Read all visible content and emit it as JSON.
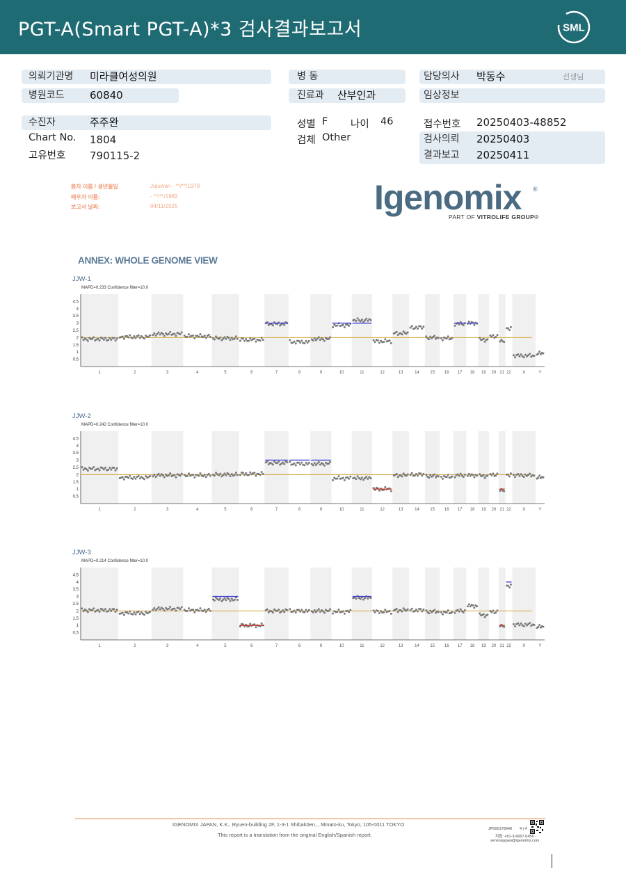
{
  "header": {
    "title": "PGT-A(Smart  PGT-A)*3 검사결과보고서",
    "brand": "SML"
  },
  "info": {
    "institution": {
      "label": "의뢰기관명",
      "value": "미라클여성의원"
    },
    "hospital_code": {
      "label": "병원코드",
      "value": "60840"
    },
    "ward": {
      "label": "병   동",
      "value": ""
    },
    "department": {
      "label": "진료과",
      "value": "산부인과"
    },
    "doctor": {
      "label": "담당의사",
      "value": "박동수",
      "suffix": "선생님"
    },
    "clinical_info": {
      "label": "임상정보",
      "value": ""
    },
    "patient": {
      "label": "수진자",
      "value": "주주완"
    },
    "chart_no": {
      "label": "Chart No.",
      "value": "1804"
    },
    "id_no": {
      "label": "고유번호",
      "value": "790115-2"
    },
    "sex": {
      "label": "성별",
      "value": "F"
    },
    "age": {
      "label": "나이",
      "value": "46"
    },
    "specimen": {
      "label": "검체",
      "value": "Other"
    },
    "receipt_no": {
      "label": "접수번호",
      "value": "20250403-48852"
    },
    "test_request": {
      "label": "검사의뢰",
      "value": "20250403"
    },
    "result_report": {
      "label": "결과보고",
      "value": "20250411"
    }
  },
  "igenomix": {
    "patient_label": "환자 이름 / 생년월일",
    "patient_value": "Jujuwan - **/**/1979",
    "spouse_label": "배우자 이름:",
    "spouse_value": " - **/**/1982",
    "report_date_label": "보고서 날짜:",
    "report_date_value": "04/11/2025",
    "logo_word": "Igenomix",
    "logo_reg": "®",
    "logo_sub_prefix": "PART OF ",
    "logo_sub_brand": "VITROLIFE GROUP",
    "logo_sub_suffix": "®"
  },
  "annex_title": "ANNEX: WHOLE GENOME VIEW",
  "chart_data": [
    {
      "type": "scatter",
      "title": "JJW-1",
      "subtitle": "MAPD=0.233 Confidence filter=10.0",
      "y_ticks": [
        "4.5",
        "4",
        "3.5",
        "3",
        "2.5",
        "2",
        "1.5",
        "1",
        "0.5"
      ],
      "ylim": [
        0,
        5
      ],
      "baseline": 2,
      "categories": [
        "1",
        "2",
        "3",
        "4",
        "5",
        "6",
        "7",
        "8",
        "9",
        "10",
        "11",
        "12",
        "13",
        "14",
        "15",
        "16",
        "17",
        "18",
        "19",
        "20",
        "21",
        "22",
        "X",
        "Y"
      ],
      "values": [
        1.9,
        2.05,
        2.25,
        2.1,
        1.95,
        1.85,
        2.95,
        1.7,
        1.9,
        2.85,
        3.2,
        1.75,
        2.3,
        2.7,
        2.0,
        1.95,
        2.95,
        3.0,
        1.85,
        2.1,
        1.8,
        2.65,
        0.75,
        0.9
      ],
      "calls": [
        {
          "chrom": "7",
          "value": 3.0,
          "color": "#3a3ad6"
        },
        {
          "chrom": "10",
          "value": 3.0,
          "color": "#3a3ad6"
        },
        {
          "chrom": "11",
          "value": 3.0,
          "color": "#3a3ad6"
        },
        {
          "chrom": "17",
          "value": 3.0,
          "color": "#3a3ad6"
        },
        {
          "chrom": "18",
          "value": 3.0,
          "color": "#3a3ad6"
        }
      ]
    },
    {
      "type": "scatter",
      "title": "JJW-2",
      "subtitle": "MAPD=0.242 Confidence filter=10.0",
      "y_ticks": [
        "4.5",
        "4",
        "3.5",
        "3",
        "2.5",
        "2",
        "1.5",
        "1",
        "0.5"
      ],
      "ylim": [
        0,
        5
      ],
      "baseline": 2,
      "categories": [
        "1",
        "2",
        "3",
        "4",
        "5",
        "6",
        "7",
        "8",
        "9",
        "10",
        "11",
        "12",
        "13",
        "14",
        "15",
        "16",
        "17",
        "18",
        "19",
        "20",
        "21",
        "22",
        "X",
        "Y"
      ],
      "values": [
        2.4,
        1.8,
        1.95,
        1.95,
        2.0,
        2.05,
        2.8,
        2.75,
        2.75,
        1.75,
        1.75,
        1.0,
        1.95,
        2.0,
        1.9,
        1.85,
        1.95,
        1.95,
        1.9,
        2.0,
        0.95,
        2.0,
        1.95,
        1.8
      ],
      "calls": [
        {
          "chrom": "7",
          "value": 3.0,
          "color": "#3a3ad6"
        },
        {
          "chrom": "8",
          "value": 3.0,
          "color": "#3a3ad6"
        },
        {
          "chrom": "9",
          "value": 3.0,
          "color": "#3a3ad6"
        },
        {
          "chrom": "12",
          "value": 1.0,
          "color": "#c0392b"
        },
        {
          "chrom": "21",
          "value": 1.0,
          "color": "#c0392b"
        }
      ]
    },
    {
      "type": "scatter",
      "title": "JJW-3",
      "subtitle": "MAPD=0.214 Confidence filter=10.0",
      "y_ticks": [
        "4.5",
        "4",
        "3.5",
        "3",
        "2.5",
        "2",
        "1.5",
        "1",
        "0.5"
      ],
      "ylim": [
        0,
        5
      ],
      "baseline": 2,
      "categories": [
        "1",
        "2",
        "3",
        "4",
        "5",
        "6",
        "7",
        "8",
        "9",
        "10",
        "11",
        "12",
        "13",
        "14",
        "15",
        "16",
        "17",
        "18",
        "19",
        "20",
        "21",
        "22",
        "X",
        "Y"
      ],
      "values": [
        2.05,
        1.85,
        2.15,
        2.05,
        2.8,
        1.0,
        2.0,
        2.0,
        2.0,
        1.95,
        2.9,
        1.95,
        2.05,
        2.05,
        1.95,
        1.9,
        2.0,
        2.35,
        1.7,
        1.95,
        1.0,
        3.75,
        1.05,
        0.9
      ],
      "calls": [
        {
          "chrom": "5",
          "value": 3.0,
          "color": "#3a3ad6"
        },
        {
          "chrom": "6",
          "value": 1.0,
          "color": "#c0392b"
        },
        {
          "chrom": "11",
          "value": 3.0,
          "color": "#3a3ad6"
        },
        {
          "chrom": "21",
          "value": 1.0,
          "color": "#c0392b"
        },
        {
          "chrom": "22",
          "value": 4.0,
          "color": "#3a3ad6"
        }
      ]
    }
  ],
  "footer": {
    "address": "IGENOMIX JAPAN, K.K., Ryuen-building 2F, 1-3-1 Shibakōen, , Minato-ku, Tokyo, 105-0011 TOKYO",
    "note": "This report is a translation from the original English/Spanish report.",
    "doc_id": "JP000178948",
    "page": "4 | 4",
    "phone": "지원: +81-3-6667-0456 -",
    "email": "servicejapan@igenomix.com"
  },
  "colors": {
    "header_bg": "#1f6b73",
    "field_bg": "#e4ecf3",
    "point": "#7a7a7a",
    "baseline": "#d4a437",
    "gain": "#3a3ad6",
    "loss": "#c0392b",
    "band": "#f0f0f0"
  }
}
